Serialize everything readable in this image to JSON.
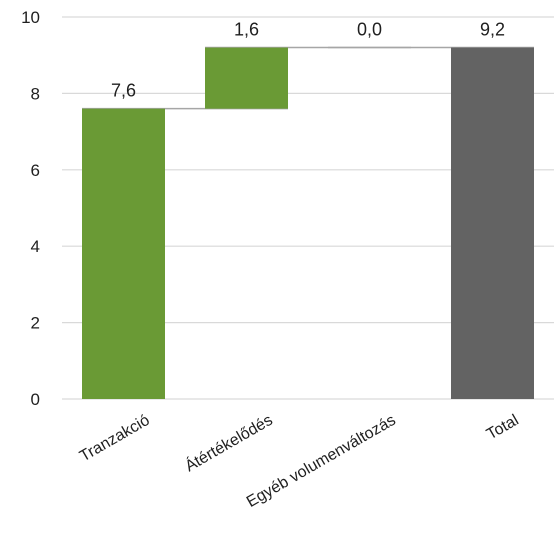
{
  "chart_data": {
    "type": "bar",
    "subtype": "waterfall",
    "categories": [
      "Tranzakció",
      "Átértékelődés",
      "Egyéb volumenváltozás",
      "Total"
    ],
    "values": [
      7.6,
      1.6,
      0.0,
      9.2
    ],
    "data_labels": [
      "7,6",
      "1,6",
      "0,0",
      "9,2"
    ],
    "is_total": [
      false,
      false,
      false,
      true
    ],
    "ylim": [
      0,
      10
    ],
    "yticks": [
      0,
      2,
      4,
      6,
      8,
      10
    ],
    "ytick_labels": [
      "0",
      "2",
      "4",
      "6",
      "8",
      "10"
    ],
    "grid": true,
    "connector_lines": true,
    "colors": {
      "increase": "#6a9a35",
      "total": "#636363",
      "grid": "#d9d9d9",
      "connector": "#a6a6a6"
    }
  }
}
